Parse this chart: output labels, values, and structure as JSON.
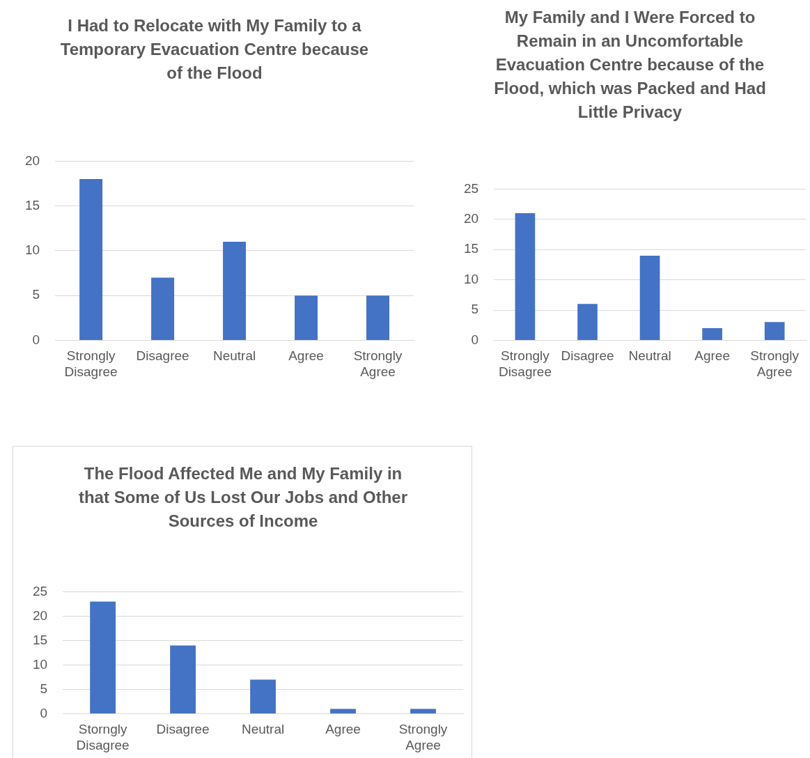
{
  "chart_data": [
    {
      "type": "bar",
      "title": "I Had to Relocate with My Family to a Temporary Evacuation Centre because of the Flood",
      "categories": [
        "Strongly Disagree",
        "Disagree",
        "Neutral",
        "Agree",
        "Strongly Agree"
      ],
      "values": [
        18,
        7,
        11,
        5,
        5
      ],
      "color": "#4472c4",
      "ylim": [
        0,
        20
      ],
      "yticks": [
        0,
        5,
        10,
        15,
        20
      ],
      "grid": "y",
      "legend": false
    },
    {
      "type": "bar",
      "title": "My Family and I Were Forced to Remain in an Uncomfortable Evacuation Centre because of the Flood, which was Packed and Had Little Privacy",
      "categories": [
        "Strongly Disagree",
        "Disagree",
        "Neutral",
        "Agree",
        "Strongly Agree"
      ],
      "values": [
        21,
        6,
        14,
        2,
        3
      ],
      "color": "#4472c4",
      "ylim": [
        0,
        25
      ],
      "yticks": [
        0,
        5,
        10,
        15,
        20,
        25
      ],
      "grid": "y",
      "legend": false
    },
    {
      "type": "bar",
      "title": "The Flood Affected Me and My Family in that Some of Us Lost Our Jobs and Other Sources of Income",
      "categories": [
        "Storngly Disagree",
        "Disagree",
        "Neutral",
        "Agree",
        "Strongly Agree"
      ],
      "values": [
        23,
        14,
        7,
        1,
        1
      ],
      "color": "#4472c4",
      "ylim": [
        0,
        25
      ],
      "yticks": [
        0,
        5,
        10,
        15,
        20,
        25
      ],
      "grid": "y",
      "legend": false
    }
  ]
}
